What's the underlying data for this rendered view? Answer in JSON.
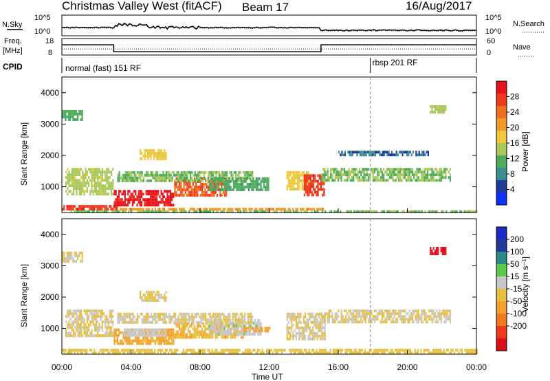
{
  "header": {
    "title": "Christmas Valley West (fitACF)",
    "beam": "Beam 17",
    "date": "16/Aug/2017"
  },
  "side_labels": {
    "nsky": "N.Sky",
    "nsearch": "N.Search",
    "freq": "Freq.",
    "freq_unit": "[MHz]",
    "nave": "Nave",
    "cpid": "CPID"
  },
  "noise_panel": {
    "left_ticks": [
      "10^5",
      "10^0"
    ],
    "right_ticks": [
      "10^5",
      "10^0"
    ]
  },
  "freq_panel": {
    "left_ticks": [
      "18",
      "8"
    ],
    "right_ticks": [
      "60",
      "0"
    ],
    "freq_steps": [
      {
        "start_h": 0,
        "end_h": 3.0,
        "mhz": 14.2
      },
      {
        "start_h": 3.0,
        "end_h": 15.0,
        "mhz": 10.0
      },
      {
        "start_h": 15.0,
        "end_h": 24.0,
        "mhz": 14.2
      }
    ],
    "nave_level": 22
  },
  "cpid": [
    {
      "label": "normal (fast) 151 RF",
      "start_h": 0
    },
    {
      "label": "rbsp 201 RF",
      "start_h": 17.85
    }
  ],
  "time_axis": {
    "label": "Time UT",
    "ticks": [
      "00:00",
      "04:00",
      "08:00",
      "12:00",
      "16:00",
      "20:00",
      "00:00"
    ],
    "range_hours": [
      0,
      24
    ]
  },
  "range_axis": {
    "label": "Slant Range [km]",
    "ticks": [
      "1000",
      "2000",
      "3000",
      "4000"
    ],
    "range_km": [
      180,
      4500
    ]
  },
  "power_scale": {
    "label": "Power [dB]",
    "ticks": [
      "4",
      "8",
      "12",
      "16",
      "20",
      "24",
      "28"
    ],
    "colors": [
      "#1030ff",
      "#203a9c",
      "#3a8e8e",
      "#4fab5c",
      "#a8c85a",
      "#f0c83a",
      "#f39a2a",
      "#f07020",
      "#ee3b1c",
      "#e8101a"
    ]
  },
  "velocity_scale": {
    "label": "Velocity [m s⁻¹]",
    "ticks": [
      "200",
      "100",
      "50",
      "15",
      "-15",
      "-50",
      "-100",
      "-200"
    ],
    "colors": [
      "#1a2ac8",
      "#243a9a",
      "#2e8a8a",
      "#5cc94a",
      "#c8c8c8",
      "#e8c040",
      "#f4a030",
      "#f47a20",
      "#ec3a1a",
      "#e0101a"
    ],
    "ground_scatter_color": "#c0c0c0"
  },
  "chart_data": [
    {
      "type": "heatmap",
      "title": "Power [dB]",
      "xlabel": "Time UT",
      "ylabel": "Slant Range [km]",
      "x_range_hours": [
        0,
        24
      ],
      "y_range_km": [
        180,
        4500
      ],
      "vrange": [
        0,
        30
      ],
      "regions": [
        {
          "t": [
            0.0,
            3.2
          ],
          "r": [
            280,
            420
          ],
          "v": 26
        },
        {
          "t": [
            3.0,
            15.2
          ],
          "r": [
            250,
            330
          ],
          "v": 20
        },
        {
          "t": [
            0.2,
            3.0
          ],
          "r": [
            800,
            1600
          ],
          "v": 14
        },
        {
          "t": [
            3.0,
            6.5
          ],
          "r": [
            450,
            900
          ],
          "v": 28
        },
        {
          "t": [
            6.5,
            9.5
          ],
          "r": [
            700,
            1300
          ],
          "v": 24
        },
        {
          "t": [
            3.2,
            11.0
          ],
          "r": [
            1200,
            1500
          ],
          "v": 12
        },
        {
          "t": [
            8.5,
            12.0
          ],
          "r": [
            900,
            1300
          ],
          "v": 10
        },
        {
          "t": [
            13.0,
            14.3
          ],
          "r": [
            900,
            1500
          ],
          "v": 16
        },
        {
          "t": [
            14.0,
            15.2
          ],
          "r": [
            700,
            1400
          ],
          "v": 26
        },
        {
          "t": [
            15.0,
            22.5
          ],
          "r": [
            1200,
            1600
          ],
          "v": 12
        },
        {
          "t": [
            4.5,
            6.0
          ],
          "r": [
            1900,
            2200
          ],
          "v": 16
        },
        {
          "t": [
            0.0,
            1.2
          ],
          "r": [
            3100,
            3450
          ],
          "v": 10
        },
        {
          "t": [
            21.3,
            22.2
          ],
          "r": [
            3400,
            3600
          ],
          "v": 14
        },
        {
          "t": [
            16.0,
            21.2
          ],
          "r": [
            2000,
            2150
          ],
          "v": 6
        },
        {
          "t": [
            0.5,
            24.0
          ],
          "r": [
            180,
            250
          ],
          "v": 12
        }
      ]
    },
    {
      "type": "heatmap",
      "title": "Velocity [m s⁻¹]",
      "xlabel": "Time UT",
      "ylabel": "Slant Range [km]",
      "x_range_hours": [
        0,
        24
      ],
      "y_range_km": [
        180,
        4500
      ],
      "vrange": [
        -250,
        250
      ],
      "regions": [
        {
          "t": [
            0.2,
            3.0
          ],
          "r": [
            800,
            1600
          ],
          "v": 0
        },
        {
          "t": [
            3.0,
            6.5
          ],
          "r": [
            500,
            1000
          ],
          "v": -60
        },
        {
          "t": [
            3.5,
            6.0
          ],
          "r": [
            750,
            1000
          ],
          "v": 30
        },
        {
          "t": [
            6.5,
            10.5
          ],
          "r": [
            700,
            1200
          ],
          "v": -45
        },
        {
          "t": [
            8.5,
            11.5
          ],
          "r": [
            800,
            1300
          ],
          "v": 35
        },
        {
          "t": [
            10.5,
            12.0
          ],
          "r": [
            900,
            1050
          ],
          "v": -70
        },
        {
          "t": [
            3.2,
            11.0
          ],
          "r": [
            1200,
            1500
          ],
          "v": 0
        },
        {
          "t": [
            13.0,
            15.2
          ],
          "r": [
            700,
            1500
          ],
          "v": 0
        },
        {
          "t": [
            15.0,
            22.5
          ],
          "r": [
            1200,
            1600
          ],
          "v": 0
        },
        {
          "t": [
            0.0,
            24.0
          ],
          "r": [
            200,
            350
          ],
          "v": -30
        },
        {
          "t": [
            0.0,
            1.2
          ],
          "r": [
            3100,
            3450
          ],
          "v": 0
        },
        {
          "t": [
            21.3,
            22.2
          ],
          "r": [
            3400,
            3600
          ],
          "v": -220
        },
        {
          "t": [
            4.5,
            6.0
          ],
          "r": [
            1900,
            2200
          ],
          "v": 0
        }
      ]
    }
  ]
}
